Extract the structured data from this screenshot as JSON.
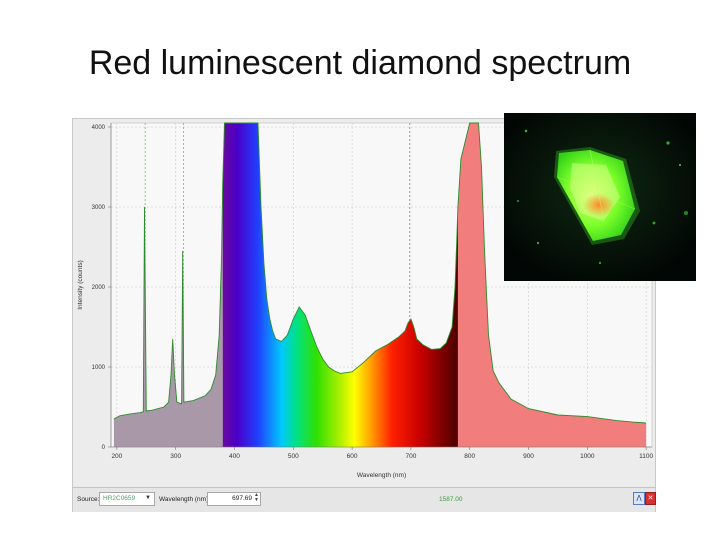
{
  "slide": {
    "title": "Red luminescent diamond spectrum"
  },
  "chart_data": {
    "type": "line",
    "title": "",
    "xlabel": "Wavelength (nm)",
    "ylabel": "Intensity (counts)",
    "xlim": [
      190,
      1110
    ],
    "ylim": [
      0,
      4050
    ],
    "grid": true,
    "x_ticks": [
      200,
      300,
      400,
      500,
      600,
      700,
      800,
      900,
      1000,
      1100
    ],
    "y_ticks": [
      0,
      1000,
      2000,
      3000,
      4000
    ],
    "series": [
      {
        "x": [
          195,
          205,
          220,
          240,
          245,
          247,
          250,
          260,
          280,
          288,
          292,
          295,
          298,
          302,
          310,
          312,
          314,
          330,
          350,
          360,
          368,
          374,
          378,
          380,
          383,
          440,
          445,
          450,
          455,
          460,
          465,
          470,
          480,
          490,
          500,
          510,
          520,
          530,
          540,
          550,
          560,
          570,
          580,
          600,
          620,
          640,
          660,
          670,
          680,
          690,
          695,
          700,
          705,
          710,
          720,
          735,
          750,
          760,
          770,
          775,
          778,
          780,
          785,
          800,
          815,
          820,
          825,
          828,
          832,
          840,
          850,
          870,
          900,
          950,
          1000,
          1050,
          1080,
          1100
        ],
        "y": [
          350,
          390,
          410,
          430,
          440,
          3000,
          450,
          460,
          500,
          560,
          900,
          1350,
          900,
          560,
          540,
          2450,
          560,
          580,
          640,
          720,
          900,
          1400,
          2400,
          3300,
          4050,
          4050,
          3000,
          2300,
          1850,
          1600,
          1450,
          1350,
          1320,
          1400,
          1600,
          1750,
          1650,
          1450,
          1250,
          1100,
          1000,
          950,
          920,
          940,
          1060,
          1200,
          1280,
          1330,
          1380,
          1450,
          1550,
          1600,
          1500,
          1350,
          1280,
          1220,
          1230,
          1300,
          1500,
          2000,
          2600,
          3000,
          3600,
          4050,
          4050,
          3500,
          2500,
          2000,
          1400,
          950,
          800,
          600,
          480,
          400,
          380,
          330,
          310,
          300
        ],
        "line_color": "#2e8b2e"
      }
    ],
    "emission_lines_nm": [
      248,
      313,
      698
    ]
  },
  "statusbar": {
    "source_label": "Source:",
    "source_value": "HR2C0659",
    "wavelength_label": "Wavelength (nm):",
    "wavelength_value": "697.69",
    "counts_value": "1587.00"
  }
}
